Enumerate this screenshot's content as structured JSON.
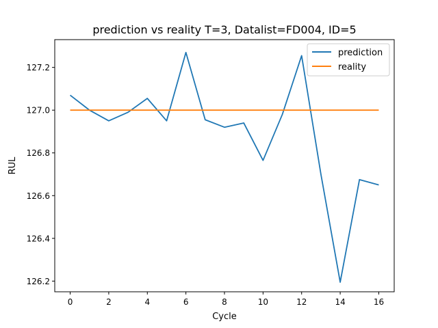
{
  "chart_data": {
    "type": "line",
    "title": "prediction vs reality T=3, Datalist=FD004, ID=5",
    "xlabel": "Cycle",
    "ylabel": "RUL",
    "xlim": [
      -0.8,
      16.8
    ],
    "ylim": [
      126.15,
      127.33
    ],
    "x_ticks": [
      0,
      2,
      4,
      6,
      8,
      10,
      12,
      14,
      16
    ],
    "y_ticks": [
      126.2,
      126.4,
      126.6,
      126.8,
      127.0,
      127.2
    ],
    "y_tick_labels": [
      "126.2",
      "126.4",
      "126.6",
      "126.8",
      "127.0",
      "127.2"
    ],
    "grid": false,
    "legend_position": "top-right",
    "x": [
      0,
      1,
      2,
      3,
      4,
      5,
      6,
      7,
      8,
      9,
      10,
      11,
      12,
      13,
      14,
      15,
      16
    ],
    "series": [
      {
        "name": "prediction",
        "color": "#1f77b4",
        "values": [
          127.07,
          127.0,
          126.95,
          126.99,
          127.055,
          126.95,
          127.27,
          126.955,
          126.92,
          126.94,
          126.765,
          126.98,
          127.255,
          126.7,
          126.195,
          126.675,
          126.65
        ]
      },
      {
        "name": "reality",
        "color": "#ff7f0e",
        "values": [
          127.0,
          127.0,
          127.0,
          127.0,
          127.0,
          127.0,
          127.0,
          127.0,
          127.0,
          127.0,
          127.0,
          127.0,
          127.0,
          127.0,
          127.0,
          127.0,
          127.0
        ]
      }
    ]
  }
}
